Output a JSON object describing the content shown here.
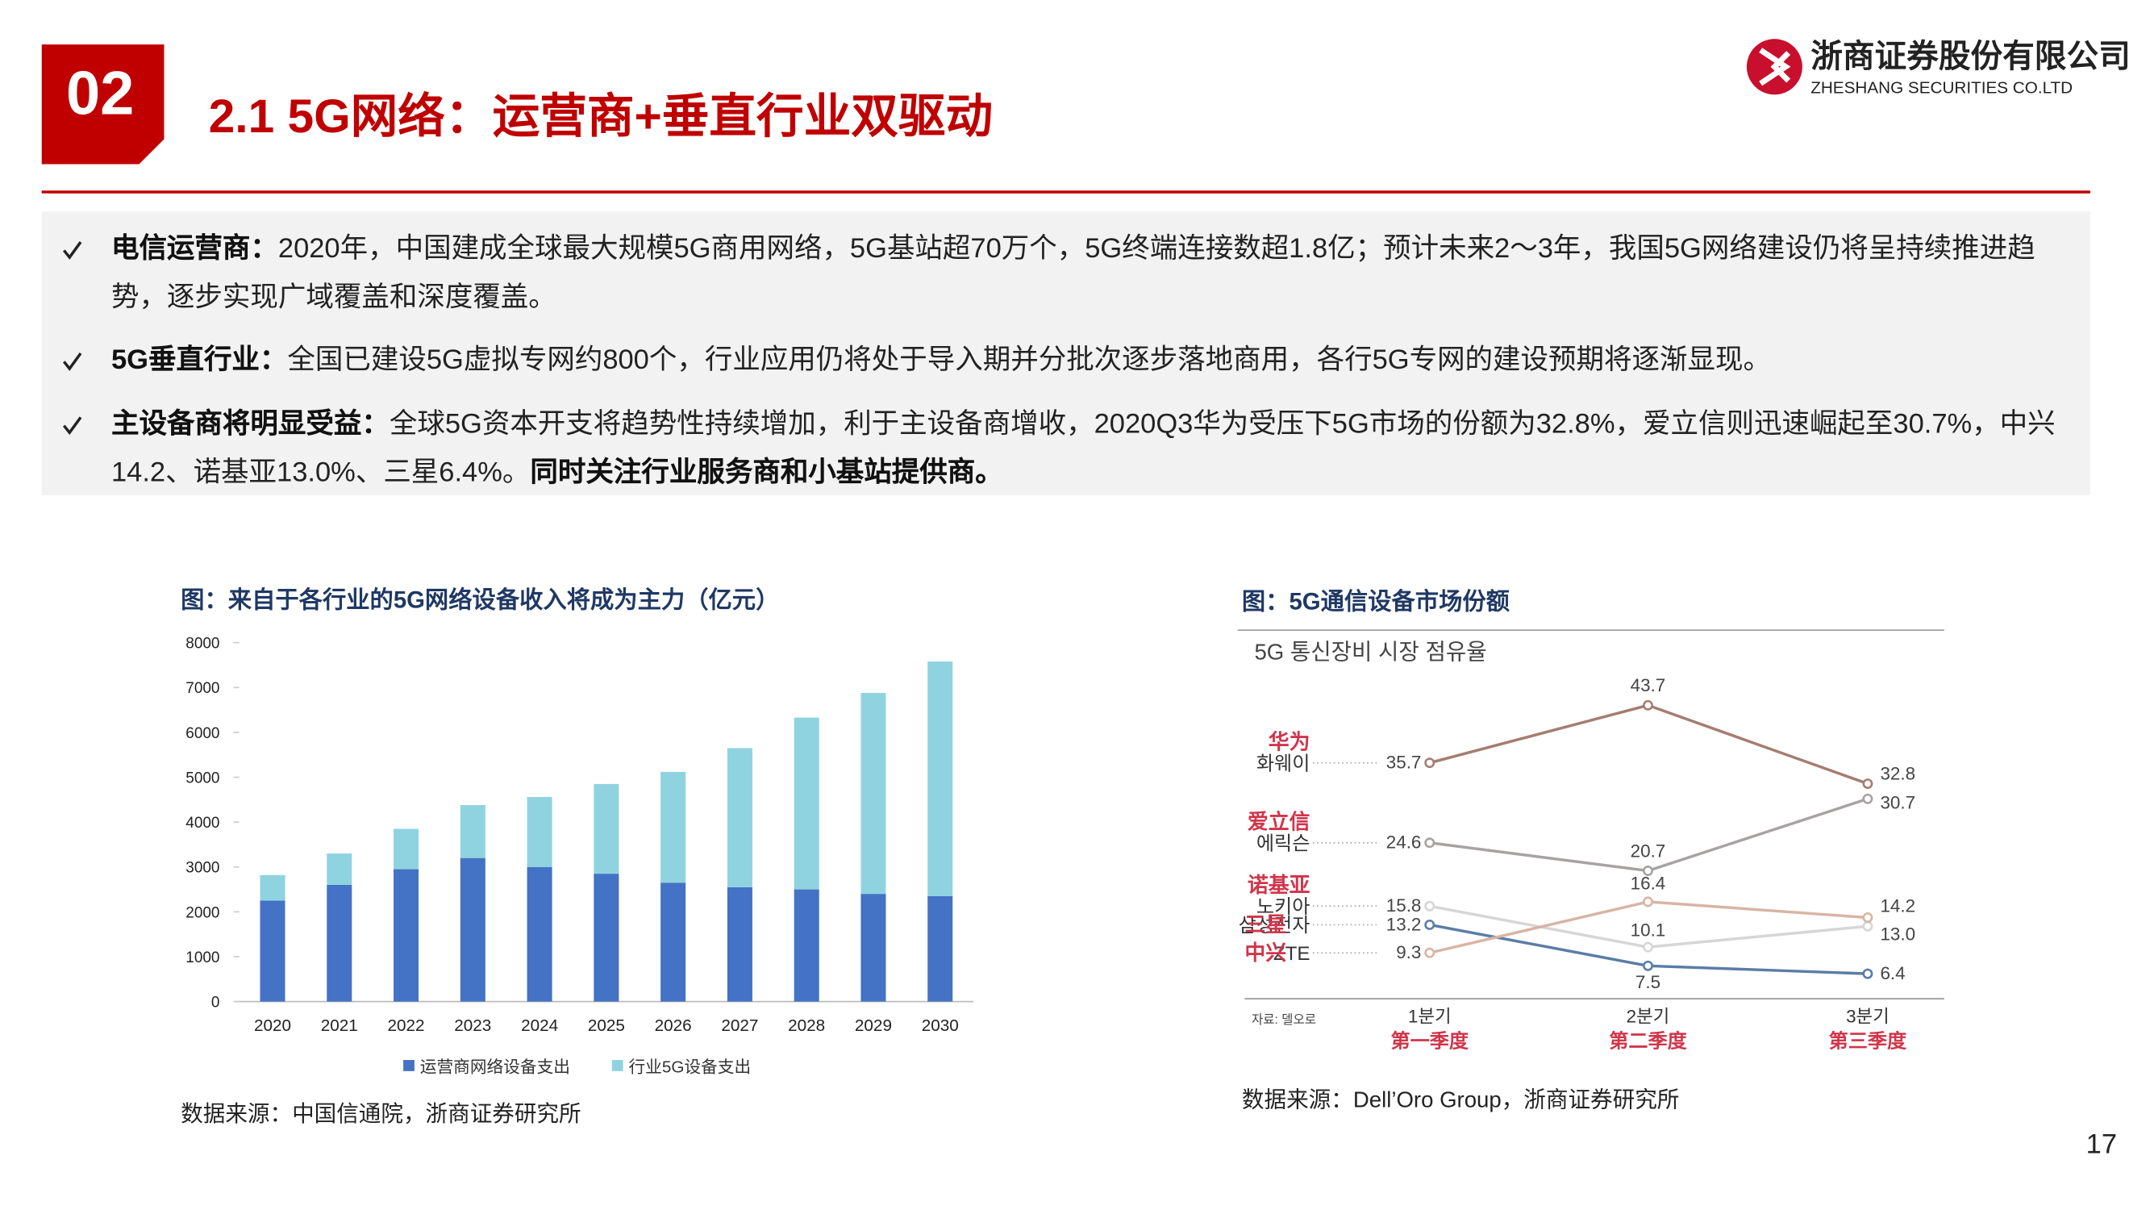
{
  "header": {
    "section": "02",
    "title": "2.1 5G网络：运营商+垂直行业双驱动",
    "company_cn": "浙商证券股份有限公司",
    "company_en": "ZHESHANG SECURITIES CO.LTD"
  },
  "bullets": [
    {
      "label": "电信运营商：",
      "text": "2020年，中国建成全球最大规模5G商用网络，5G基站超70万个，5G终端连接数超1.8亿；预计未来2～3年，我国5G网络建设仍将呈持续推进趋势，逐步实现广域覆盖和深度覆盖。"
    },
    {
      "label": "5G垂直行业：",
      "text": "全国已建设5G虚拟专网约800个，行业应用仍将处于导入期并分批次逐步落地商用，各行5G专网的建设预期将逐渐显现。"
    },
    {
      "label": "主设备商将明显受益：",
      "text": "全球5G资本开支将趋势性持续增加，利于主设备商增收，2020Q3华为受压下5G市场的份额为32.8%，爱立信则迅速崛起至30.7%，中兴14.2、诺基亚13.0%、三星6.4%。",
      "emphasis": "同时关注行业服务商和小基站提供商。"
    }
  ],
  "chart_data": [
    {
      "type": "stacked-bar",
      "title": "图：来自于各行业的5G网络设备收入将成为主力（亿元）",
      "categories": [
        "2020",
        "2021",
        "2022",
        "2023",
        "2024",
        "2025",
        "2026",
        "2027",
        "2028",
        "2029",
        "2030"
      ],
      "series": [
        {
          "name": "运营商网络设备支出",
          "color": "#4472c4",
          "values": [
            2250,
            2600,
            2950,
            3200,
            3000,
            2850,
            2650,
            2550,
            2500,
            2400,
            2350
          ]
        },
        {
          "name": "行业5G设备支出",
          "color": "#8fd3e0",
          "values": [
            570,
            700,
            900,
            1180,
            1560,
            2000,
            2470,
            3100,
            3830,
            4480,
            5230
          ]
        }
      ],
      "ylim": [
        0,
        8000
      ],
      "yticks": [
        0,
        1000,
        2000,
        3000,
        4000,
        5000,
        6000,
        7000,
        8000
      ],
      "source": "数据来源：中国信通院，浙商证券研究所"
    },
    {
      "type": "line",
      "title": "图：5G通信设备市场份额",
      "subtitle": "5G 통신장비 시장 점유율",
      "note": "자료: 델오로",
      "categories": [
        "1분기",
        "2분기",
        "3분기"
      ],
      "category_translations": [
        "第一季度",
        "第二季度",
        "第三季度"
      ],
      "series": [
        {
          "name": "화웨이",
          "name_translation": "华为",
          "color": "#a57d70",
          "values": [
            35.7,
            43.7,
            32.8
          ],
          "value_labels": [
            "35.7",
            "43.7",
            "32.8"
          ]
        },
        {
          "name": "에릭슨",
          "name_translation": "爱立信",
          "color": "#a8a2a2",
          "values": [
            24.6,
            20.7,
            30.7
          ],
          "value_labels": [
            "24.6",
            "20.7",
            "30.7"
          ]
        },
        {
          "name": "노키아",
          "name_translation": "诺基亚",
          "color": "#d6d6d6",
          "values": [
            15.8,
            10.1,
            13.0
          ],
          "value_labels": [
            "15.8",
            "10.1",
            "13.0"
          ]
        },
        {
          "name": "삼성전자",
          "name_translation": "三星",
          "color": "#5b7ca6",
          "values": [
            13.2,
            7.5,
            6.4
          ],
          "value_labels": [
            "13.2",
            "7.5",
            "6.4"
          ]
        },
        {
          "name": "ZTE",
          "name_translation": "中兴",
          "color": "#d8b4a4",
          "values": [
            9.3,
            16.4,
            14.2
          ],
          "value_labels": [
            "9.3",
            "16.4",
            "14.2"
          ]
        }
      ],
      "source": "数据来源：Dell’Oro Group，浙商证券研究所"
    }
  ],
  "page_number": "17"
}
